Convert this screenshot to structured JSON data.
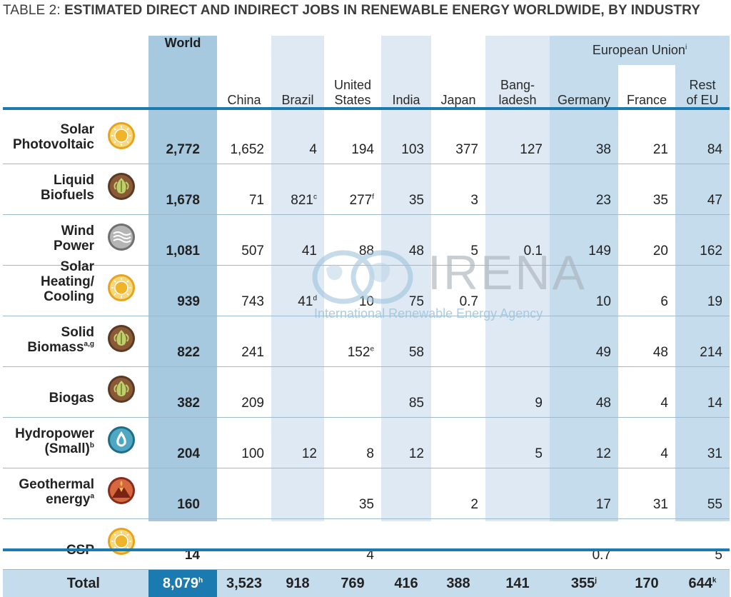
{
  "title": {
    "prefix": "TABLE 2: ",
    "main": "ESTIMATED DIRECT AND INDIRECT JOBS IN RENEWABLE ENERGY WORLDWIDE, BY INDUSTRY"
  },
  "header": {
    "world": "World",
    "eu_group": "European Union",
    "eu_note": "i",
    "countries": [
      {
        "line1": "",
        "line2": "China"
      },
      {
        "line1": "",
        "line2": "Brazil"
      },
      {
        "line1": "United",
        "line2": "States"
      },
      {
        "line1": "",
        "line2": "India"
      },
      {
        "line1": "",
        "line2": "Japan"
      },
      {
        "line1": "Bang-",
        "line2": "ladesh"
      },
      {
        "line1": "",
        "line2": "Germany"
      },
      {
        "line1": "",
        "line2": "France"
      },
      {
        "line1": "Rest",
        "line2": "of EU"
      }
    ]
  },
  "rows": [
    {
      "l1": "Solar",
      "l2": "Photovoltaic",
      "l3": "",
      "sup": "",
      "icon": "sun-icon",
      "world": "2,772",
      "values": [
        "1,652",
        "4",
        "194",
        "103",
        "377",
        "127",
        "38",
        "21",
        "84"
      ],
      "notes": [
        "",
        "",
        "",
        "",
        "",
        "",
        "",
        "",
        ""
      ]
    },
    {
      "l1": "Liquid",
      "l2": "Biofuels",
      "l3": "",
      "sup": "",
      "icon": "leaf-icon",
      "world": "1,678",
      "values": [
        "71",
        "821",
        "277",
        "35",
        "3",
        "",
        "23",
        "35",
        "47"
      ],
      "notes": [
        "",
        "c",
        "f",
        "",
        "",
        "",
        "",
        "",
        ""
      ]
    },
    {
      "l1": "Wind",
      "l2": "Power",
      "l3": "",
      "sup": "",
      "icon": "wind-icon",
      "world": "1,081",
      "values": [
        "507",
        "41",
        "88",
        "48",
        "5",
        "0.1",
        "149",
        "20",
        "162"
      ],
      "notes": [
        "",
        "",
        "",
        "",
        "",
        "",
        "",
        "",
        ""
      ]
    },
    {
      "l1": "Solar",
      "l2": "Heating/",
      "l3": "Cooling",
      "sup": "",
      "icon": "sun-icon",
      "world": "939",
      "values": [
        "743",
        "41",
        "10",
        "75",
        "0.7",
        "",
        "10",
        "6",
        "19"
      ],
      "notes": [
        "",
        "d",
        "",
        "",
        "",
        "",
        "",
        "",
        ""
      ]
    },
    {
      "l1": "Solid",
      "l2": "Biomass",
      "l3": "",
      "sup": "a,g",
      "icon": "leaf-icon",
      "world": "822",
      "values": [
        "241",
        "",
        "152",
        "58",
        "",
        "",
        "49",
        "48",
        "214"
      ],
      "notes": [
        "",
        "",
        "e",
        "",
        "",
        "",
        "",
        "",
        ""
      ]
    },
    {
      "l1": "",
      "l2": "Biogas",
      "l3": "",
      "sup": "",
      "icon": "leaf-icon",
      "world": "382",
      "values": [
        "209",
        "",
        "",
        "85",
        "",
        "9",
        "48",
        "4",
        "14"
      ],
      "notes": [
        "",
        "",
        "",
        "",
        "",
        "",
        "",
        "",
        ""
      ]
    },
    {
      "l1": "Hydropower",
      "l2": "(Small)",
      "l3": "",
      "sup": "b",
      "icon": "water-drop-icon",
      "world": "204",
      "values": [
        "100",
        "12",
        "8",
        "12",
        "",
        "5",
        "12",
        "4",
        "31"
      ],
      "notes": [
        "",
        "",
        "",
        "",
        "",
        "",
        "",
        "",
        ""
      ]
    },
    {
      "l1": "Geothermal",
      "l2": "energy",
      "l3": "",
      "sup": "a",
      "icon": "volcano-icon",
      "world": "160",
      "values": [
        "",
        "",
        "35",
        "",
        "2",
        "",
        "17",
        "31",
        "55"
      ],
      "notes": [
        "",
        "",
        "",
        "",
        "",
        "",
        "",
        "",
        ""
      ]
    },
    {
      "l1": "",
      "l2": "CSP",
      "l3": "",
      "sup": "",
      "icon": "sun-icon",
      "world": "14",
      "values": [
        "",
        "",
        "4",
        "",
        "",
        "",
        "0.7",
        "",
        "5"
      ],
      "notes": [
        "",
        "",
        "",
        "",
        "",
        "",
        "",
        "",
        ""
      ]
    }
  ],
  "total": {
    "label": "Total",
    "world": "8,079",
    "world_note": "h",
    "values": [
      "3,523",
      "918",
      "769",
      "416",
      "388",
      "141",
      "355",
      "170",
      "644"
    ],
    "notes": [
      "",
      "",
      "",
      "",
      "",
      "",
      "j",
      "",
      "k"
    ]
  },
  "watermark": {
    "name": "IRENA",
    "subtitle": "International Renewable Energy Agency"
  },
  "colors": {
    "accent": "#1b7ab0",
    "world_column": "#a7c9e0",
    "shaded_column": "#dfe9f3",
    "eu_header": "#c5dced"
  }
}
